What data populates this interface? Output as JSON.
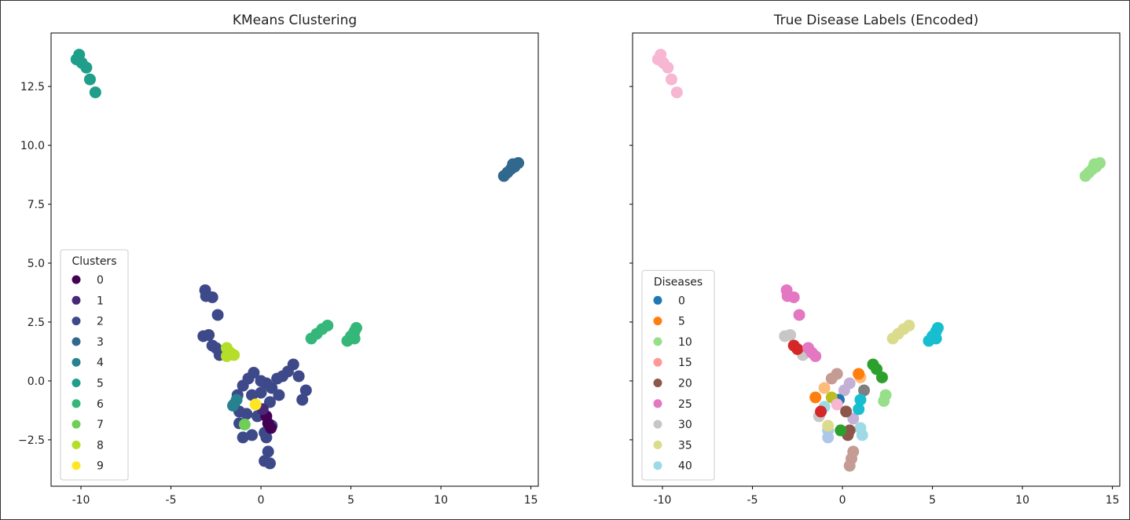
{
  "chart_data": [
    {
      "type": "scatter",
      "title": "KMeans Clustering",
      "xlim": [
        -11.66,
        15.41
      ],
      "ylim": [
        -4.47,
        14.77
      ],
      "xticks": [
        -10,
        -5,
        0,
        5,
        10,
        15
      ],
      "yticks": [
        -2.5,
        0.0,
        2.5,
        5.0,
        7.5,
        10.0,
        12.5
      ],
      "show_yticklabels": true,
      "grid": false,
      "colormap": "viridis",
      "color_range": [
        0,
        9
      ],
      "legend": {
        "title": "Clusters",
        "position": "lower-left",
        "entries": [
          "0",
          "1",
          "2",
          "3",
          "4",
          "5",
          "6",
          "7",
          "8",
          "9"
        ],
        "colors": [
          "#440154",
          "#482878",
          "#3e4989",
          "#31688e",
          "#26828e",
          "#1f9e89",
          "#35b779",
          "#6ece58",
          "#b5de2b",
          "#fde725"
        ]
      },
      "points": [
        [
          -10.1,
          13.85,
          5
        ],
        [
          -10.25,
          13.65,
          5
        ],
        [
          -9.95,
          13.5,
          5
        ],
        [
          -9.7,
          13.3,
          5
        ],
        [
          -9.5,
          12.8,
          5
        ],
        [
          -9.2,
          12.25,
          5
        ],
        [
          13.5,
          8.7,
          3
        ],
        [
          13.7,
          8.85,
          3
        ],
        [
          13.9,
          9.0,
          3
        ],
        [
          14.1,
          9.1,
          3
        ],
        [
          14.3,
          9.25,
          3
        ],
        [
          14.0,
          9.2,
          3
        ],
        [
          2.8,
          1.8,
          6
        ],
        [
          3.1,
          2.0,
          6
        ],
        [
          3.4,
          2.2,
          6
        ],
        [
          3.7,
          2.35,
          6
        ],
        [
          4.8,
          1.7,
          6
        ],
        [
          5.0,
          1.9,
          6
        ],
        [
          5.2,
          2.1,
          6
        ],
        [
          5.3,
          2.25,
          6
        ],
        [
          5.2,
          1.8,
          6
        ],
        [
          -3.1,
          3.85,
          2
        ],
        [
          -3.05,
          3.6,
          2
        ],
        [
          -2.7,
          3.55,
          2
        ],
        [
          -2.4,
          2.8,
          2
        ],
        [
          -3.2,
          1.9,
          2
        ],
        [
          -2.9,
          1.95,
          2
        ],
        [
          -2.7,
          1.5,
          2
        ],
        [
          -2.3,
          1.1,
          2
        ],
        [
          -2.5,
          1.4,
          2
        ],
        [
          -0.4,
          0.35,
          2
        ],
        [
          -0.7,
          0.1,
          2
        ],
        [
          -1.0,
          -0.2,
          2
        ],
        [
          -1.3,
          -0.6,
          2
        ],
        [
          -1.5,
          -1.0,
          2
        ],
        [
          0,
          0,
          2
        ],
        [
          0.3,
          -0.1,
          2
        ],
        [
          0.6,
          -0.3,
          2
        ],
        [
          0.9,
          0.1,
          2
        ],
        [
          1.2,
          0.2,
          2
        ],
        [
          1.5,
          0.4,
          2
        ],
        [
          1.8,
          0.7,
          2
        ],
        [
          2.1,
          0.2,
          2
        ],
        [
          2.5,
          -0.4,
          2
        ],
        [
          2.3,
          -0.8,
          2
        ],
        [
          1.0,
          -0.6,
          2
        ],
        [
          0.5,
          -0.9,
          2
        ],
        [
          -0.5,
          -0.6,
          2
        ],
        [
          -0.8,
          -1.4,
          2
        ],
        [
          -1.2,
          -1.8,
          2
        ],
        [
          -1.0,
          -2.4,
          2
        ],
        [
          -0.5,
          -2.3,
          2
        ],
        [
          0.2,
          -2.2,
          2
        ],
        [
          0.6,
          -1.9,
          2
        ],
        [
          0.3,
          -2.4,
          2
        ],
        [
          0.4,
          -3.0,
          2
        ],
        [
          0.2,
          -3.4,
          2
        ],
        [
          0.5,
          -3.5,
          2
        ],
        [
          -0.2,
          -1.5,
          2
        ],
        [
          0.0,
          -0.5,
          2
        ],
        [
          -1.2,
          -1.3,
          2
        ],
        [
          -1.9,
          1.4,
          8
        ],
        [
          -1.7,
          1.2,
          8
        ],
        [
          -1.5,
          1.1,
          8
        ],
        [
          -1.9,
          1.05,
          8
        ],
        [
          0.3,
          -1.5,
          0
        ],
        [
          0.4,
          -1.8,
          0
        ],
        [
          0.55,
          -2.0,
          0
        ],
        [
          0.1,
          -1.2,
          1
        ],
        [
          -1.55,
          -1.05,
          4
        ],
        [
          -1.35,
          -0.8,
          4
        ],
        [
          -0.9,
          -1.85,
          7
        ],
        [
          -0.3,
          -1.0,
          9
        ]
      ]
    },
    {
      "type": "scatter",
      "title": "True Disease Labels (Encoded)",
      "xlim": [
        -11.66,
        15.41
      ],
      "ylim": [
        -4.47,
        14.77
      ],
      "xticks": [
        -10,
        -5,
        0,
        5,
        10,
        15
      ],
      "yticks": [
        -2.5,
        0.0,
        2.5,
        5.0,
        7.5,
        10.0,
        12.5
      ],
      "show_yticklabels": false,
      "grid": false,
      "colormap": "tab20",
      "color_range": [
        0,
        40
      ],
      "legend": {
        "title": "Diseases",
        "position": "lower-left",
        "entries": [
          "0",
          "5",
          "10",
          "15",
          "20",
          "25",
          "30",
          "35",
          "40"
        ],
        "colors": [
          "#1f77b4",
          "#ff7f0e",
          "#98df8a",
          "#ff9896",
          "#8c564b",
          "#e377c2",
          "#c7c7c7",
          "#dbdb8d",
          "#9edae5"
        ]
      },
      "points": [
        [
          -10.1,
          13.85,
          27
        ],
        [
          -10.25,
          13.65,
          27
        ],
        [
          -9.95,
          13.5,
          27
        ],
        [
          -9.7,
          13.3,
          27
        ],
        [
          -9.5,
          12.8,
          27
        ],
        [
          -9.2,
          12.25,
          27
        ],
        [
          13.5,
          8.7,
          10
        ],
        [
          13.7,
          8.85,
          10
        ],
        [
          13.9,
          9.0,
          10
        ],
        [
          14.1,
          9.1,
          10
        ],
        [
          14.3,
          9.25,
          10
        ],
        [
          14.0,
          9.2,
          10
        ],
        [
          2.8,
          1.8,
          35
        ],
        [
          3.1,
          2.0,
          35
        ],
        [
          3.4,
          2.2,
          35
        ],
        [
          3.7,
          2.35,
          35
        ],
        [
          4.8,
          1.7,
          37
        ],
        [
          5.0,
          1.9,
          37
        ],
        [
          5.2,
          2.1,
          37
        ],
        [
          5.3,
          2.25,
          37
        ],
        [
          5.2,
          1.8,
          37
        ],
        [
          -3.1,
          3.85,
          25
        ],
        [
          -3.05,
          3.6,
          25
        ],
        [
          -2.7,
          3.55,
          25
        ],
        [
          -2.4,
          2.8,
          25
        ],
        [
          -3.2,
          1.9,
          30
        ],
        [
          -2.9,
          1.95,
          30
        ],
        [
          -2.2,
          1.1,
          30
        ],
        [
          -2.7,
          1.5,
          13
        ],
        [
          -2.5,
          1.35,
          13
        ],
        [
          -1.9,
          1.4,
          25
        ],
        [
          -1.7,
          1.2,
          25
        ],
        [
          -1.5,
          1.05,
          25
        ],
        [
          1.7,
          0.7,
          8
        ],
        [
          1.9,
          0.5,
          8
        ],
        [
          2.2,
          0.15,
          8
        ],
        [
          2.4,
          -0.6,
          10
        ],
        [
          2.3,
          -0.85,
          10
        ],
        [
          1.2,
          -0.4,
          28
        ],
        [
          1.0,
          0.15,
          6
        ],
        [
          0.9,
          0.3,
          4
        ],
        [
          -0.6,
          0.1,
          22
        ],
        [
          -0.3,
          0.3,
          22
        ],
        [
          -1.0,
          -0.3,
          6
        ],
        [
          -1.5,
          -0.7,
          4
        ],
        [
          0.1,
          -0.4,
          18
        ],
        [
          0.4,
          -0.1,
          18
        ],
        [
          0.6,
          -1.6,
          18
        ],
        [
          1.0,
          -0.8,
          37
        ],
        [
          0.9,
          -1.2,
          37
        ],
        [
          -1.0,
          -1.1,
          39
        ],
        [
          1.1,
          -2.3,
          39
        ],
        [
          1.0,
          -2.0,
          39
        ],
        [
          -0.2,
          -0.8,
          0
        ],
        [
          -0.6,
          -0.7,
          32
        ],
        [
          -0.3,
          -1.0,
          27
        ],
        [
          0.3,
          -2.3,
          20
        ],
        [
          0.2,
          -1.3,
          20
        ],
        [
          0.4,
          -2.1,
          20
        ],
        [
          -0.8,
          -2.4,
          2
        ],
        [
          -0.8,
          -2.1,
          2
        ],
        [
          -1.3,
          -1.5,
          30
        ],
        [
          -0.8,
          -1.9,
          35
        ],
        [
          -0.1,
          -2.1,
          8
        ],
        [
          0.5,
          -3.3,
          22
        ],
        [
          0.6,
          -3.0,
          22
        ],
        [
          0.4,
          -3.6,
          22
        ],
        [
          -1.2,
          -1.3,
          13
        ]
      ]
    }
  ]
}
